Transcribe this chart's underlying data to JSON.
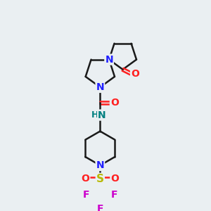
{
  "background_color": "#eaeff2",
  "bond_color": "#1a1a1a",
  "N_color": "#2020ff",
  "O_color": "#ff2020",
  "F_color": "#cc00cc",
  "S_color": "#b8b800",
  "NH_color": "#008080",
  "bond_width": 1.8,
  "figsize": [
    3.0,
    3.0
  ],
  "dpi": 100,
  "xlim": [
    0,
    10
  ],
  "ylim": [
    0,
    10
  ]
}
